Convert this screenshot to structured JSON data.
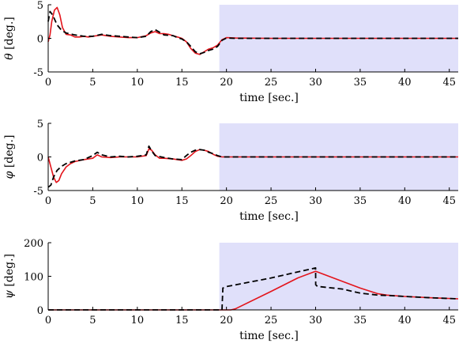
{
  "chart_data": [
    {
      "type": "line",
      "ylabel_symbol": "θ",
      "ylabel_unit": "[deg.]",
      "xlabel": "time [sec.]",
      "xlim": [
        0,
        46
      ],
      "ylim": [
        -5,
        5
      ],
      "xticks": [
        0,
        5,
        10,
        15,
        20,
        25,
        30,
        35,
        40,
        45
      ],
      "yticks": [
        -5,
        0,
        5
      ],
      "shade_from": 19.2,
      "shade_color": "#e0e0fa",
      "series": [
        {
          "color": "#e3141b",
          "style": "solid",
          "x": [
            0,
            0.2,
            0.4,
            0.7,
            1.0,
            1.3,
            1.6,
            2.0,
            2.5,
            3,
            3.5,
            4,
            4.5,
            5,
            5.5,
            6,
            6.5,
            7,
            8,
            9,
            10,
            11,
            11.5,
            12,
            12.5,
            13,
            13.5,
            14,
            14.5,
            15,
            15.5,
            16,
            16.5,
            17,
            17.5,
            18,
            18.5,
            19,
            19.5,
            20,
            21,
            25,
            30,
            35,
            40,
            46
          ],
          "y": [
            -0.5,
            0.5,
            2.5,
            4.2,
            4.6,
            3.5,
            1.6,
            0.6,
            0.5,
            0.2,
            0.2,
            0.3,
            0.2,
            0.3,
            0.4,
            0.5,
            0.4,
            0.3,
            0.2,
            0.1,
            0.1,
            0.4,
            0.8,
            1.0,
            0.7,
            0.7,
            0.6,
            0.4,
            0.2,
            0.0,
            -0.5,
            -1.5,
            -2.2,
            -2.4,
            -2.0,
            -1.6,
            -1.4,
            -1.0,
            -0.2,
            0.1,
            0.05,
            0.0,
            0.0,
            0.0,
            0.0,
            0.0
          ]
        },
        {
          "color": "#000000",
          "style": "dashed",
          "x": [
            0,
            0.2,
            0.5,
            1,
            1.5,
            2,
            3,
            4,
            5,
            6,
            7,
            8,
            9,
            10,
            11,
            11.5,
            12,
            12.5,
            13,
            14,
            14.5,
            15,
            15.5,
            16,
            16.5,
            17,
            17.5,
            18,
            18.5,
            19,
            19.5,
            20,
            21,
            25,
            30,
            35,
            40,
            46
          ],
          "y": [
            2.5,
            4.0,
            3.5,
            2.0,
            1.2,
            0.8,
            0.5,
            0.3,
            0.3,
            0.6,
            0.4,
            0.3,
            0.2,
            0.1,
            0.3,
            1.0,
            1.3,
            0.9,
            0.5,
            0.4,
            0.1,
            -0.1,
            -0.5,
            -1.2,
            -2.0,
            -2.3,
            -2.1,
            -1.8,
            -1.6,
            -1.2,
            -0.3,
            0.05,
            0.0,
            0.0,
            0.0,
            0.0,
            0.0,
            0.0
          ]
        }
      ]
    },
    {
      "type": "line",
      "ylabel_symbol": "φ",
      "ylabel_unit": "[deg.]",
      "xlabel": "time [sec.]",
      "xlim": [
        0,
        46
      ],
      "ylim": [
        -5,
        5
      ],
      "xticks": [
        0,
        5,
        10,
        15,
        20,
        25,
        30,
        35,
        40,
        45
      ],
      "yticks": [
        -5,
        0,
        5
      ],
      "shade_from": 19.2,
      "shade_color": "#e0e0fa",
      "series": [
        {
          "color": "#e3141b",
          "style": "solid",
          "x": [
            0,
            0.3,
            0.6,
            0.9,
            1.2,
            1.5,
            2,
            2.5,
            3,
            4,
            5,
            5.5,
            6,
            7,
            8,
            9,
            10,
            11,
            11.3,
            11.6,
            12,
            12.5,
            13,
            14,
            15,
            15.5,
            16,
            16.5,
            17,
            17.5,
            18,
            18.5,
            19,
            19.5,
            20,
            25,
            30,
            35,
            40,
            46
          ],
          "y": [
            0,
            -1.5,
            -3.0,
            -3.8,
            -3.5,
            -2.5,
            -1.5,
            -1.0,
            -0.7,
            -0.4,
            -0.2,
            0.3,
            0.0,
            -0.1,
            0.0,
            0.0,
            0.0,
            0.2,
            1.2,
            1.0,
            0.3,
            -0.2,
            -0.2,
            -0.3,
            -0.5,
            -0.3,
            0.2,
            0.8,
            1.1,
            1.0,
            0.8,
            0.4,
            0.1,
            0.0,
            0.0,
            0.0,
            0.0,
            0.0,
            0.0,
            0.0
          ]
        },
        {
          "color": "#000000",
          "style": "dashed",
          "x": [
            0,
            0.3,
            0.6,
            1,
            1.5,
            2,
            3,
            4,
            5,
            5.5,
            6,
            7,
            8,
            9,
            10,
            11,
            11.3,
            11.6,
            12,
            13,
            14,
            15,
            15.5,
            16,
            16.5,
            17,
            17.5,
            18,
            18.5,
            19,
            19.5,
            20,
            25,
            30,
            35,
            40,
            46
          ],
          "y": [
            -4.5,
            -4.2,
            -3.0,
            -2.0,
            -1.4,
            -1.0,
            -0.6,
            -0.4,
            0.2,
            0.7,
            0.3,
            0.0,
            0.1,
            0.0,
            0.1,
            0.3,
            1.6,
            0.9,
            0.2,
            -0.1,
            -0.3,
            -0.4,
            0.2,
            0.7,
            1.0,
            1.1,
            1.0,
            0.7,
            0.5,
            0.2,
            0.0,
            0.0,
            0.0,
            0.0,
            0.0,
            0.0,
            0.0
          ]
        }
      ]
    },
    {
      "type": "line",
      "ylabel_symbol": "ψ",
      "ylabel_unit": "[deg.]",
      "xlabel": "time [sec.]",
      "xlim": [
        0,
        46
      ],
      "ylim": [
        0,
        200
      ],
      "xticks": [
        0,
        5,
        10,
        15,
        20,
        25,
        30,
        35,
        40,
        45
      ],
      "yticks": [
        0,
        100,
        200
      ],
      "shade_from": 19.2,
      "shade_color": "#e0e0fa",
      "series": [
        {
          "color": "#e3141b",
          "style": "solid",
          "x": [
            0,
            20.5,
            21,
            25,
            28,
            30,
            32,
            35,
            37,
            38,
            40,
            43,
            46
          ],
          "y": [
            0,
            0,
            3,
            55,
            95,
            115,
            95,
            65,
            48,
            44,
            40,
            36,
            33
          ]
        },
        {
          "color": "#000000",
          "style": "dashed",
          "x": [
            0,
            19.5,
            19.6,
            20.1,
            25,
            30,
            30.01,
            30.2,
            33,
            35,
            37,
            38,
            40,
            43,
            46
          ],
          "y": [
            0,
            0,
            65,
            70,
            95,
            125,
            75,
            70,
            62,
            50,
            44,
            43,
            40,
            36,
            33
          ]
        }
      ]
    }
  ]
}
